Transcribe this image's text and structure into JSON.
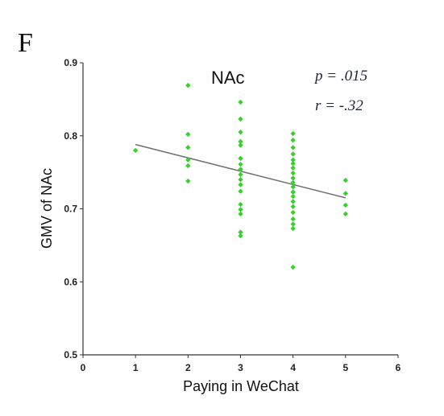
{
  "panel_label": "F",
  "chart_data": {
    "type": "scatter",
    "title": "NAc",
    "xlabel": "Paying in WeChat",
    "ylabel": "GMV of NAc",
    "xlim": [
      0,
      6
    ],
    "ylim": [
      0.5,
      0.9
    ],
    "x_ticks": [
      "0",
      "1",
      "2",
      "3",
      "4",
      "5",
      "6"
    ],
    "y_ticks": [
      "0.5",
      "0.6",
      "0.7",
      "0.8",
      "0.9"
    ],
    "grid": false,
    "annotations": {
      "p": "p = .015",
      "r": "r = -.32"
    },
    "colors": {
      "points": "#39d02e",
      "fit_line": "#707070",
      "axes": "#333333"
    },
    "points": [
      {
        "x": 1,
        "y": 0.78
      },
      {
        "x": 2,
        "y": 0.869
      },
      {
        "x": 2,
        "y": 0.802
      },
      {
        "x": 2,
        "y": 0.784
      },
      {
        "x": 2,
        "y": 0.767
      },
      {
        "x": 2,
        "y": 0.759
      },
      {
        "x": 2,
        "y": 0.738
      },
      {
        "x": 3,
        "y": 0.846
      },
      {
        "x": 3,
        "y": 0.823
      },
      {
        "x": 3,
        "y": 0.805
      },
      {
        "x": 3,
        "y": 0.792
      },
      {
        "x": 3,
        "y": 0.787
      },
      {
        "x": 3,
        "y": 0.769
      },
      {
        "x": 3,
        "y": 0.761
      },
      {
        "x": 3,
        "y": 0.754
      },
      {
        "x": 3,
        "y": 0.747
      },
      {
        "x": 3,
        "y": 0.74
      },
      {
        "x": 3,
        "y": 0.733
      },
      {
        "x": 3,
        "y": 0.724
      },
      {
        "x": 3,
        "y": 0.706
      },
      {
        "x": 3,
        "y": 0.699
      },
      {
        "x": 3,
        "y": 0.693
      },
      {
        "x": 3,
        "y": 0.668
      },
      {
        "x": 3,
        "y": 0.663
      },
      {
        "x": 4,
        "y": 0.803
      },
      {
        "x": 4,
        "y": 0.794
      },
      {
        "x": 4,
        "y": 0.784
      },
      {
        "x": 4,
        "y": 0.775
      },
      {
        "x": 4,
        "y": 0.767
      },
      {
        "x": 4,
        "y": 0.762
      },
      {
        "x": 4,
        "y": 0.756
      },
      {
        "x": 4,
        "y": 0.749
      },
      {
        "x": 4,
        "y": 0.742
      },
      {
        "x": 4,
        "y": 0.736
      },
      {
        "x": 4,
        "y": 0.73
      },
      {
        "x": 4,
        "y": 0.723
      },
      {
        "x": 4,
        "y": 0.717
      },
      {
        "x": 4,
        "y": 0.71
      },
      {
        "x": 4,
        "y": 0.703
      },
      {
        "x": 4,
        "y": 0.695
      },
      {
        "x": 4,
        "y": 0.686
      },
      {
        "x": 4,
        "y": 0.679
      },
      {
        "x": 4,
        "y": 0.673
      },
      {
        "x": 4,
        "y": 0.62
      },
      {
        "x": 5,
        "y": 0.739
      },
      {
        "x": 5,
        "y": 0.721
      },
      {
        "x": 5,
        "y": 0.705
      },
      {
        "x": 5,
        "y": 0.693
      }
    ],
    "fit_line": {
      "x": [
        1,
        5
      ],
      "y": [
        0.788,
        0.715
      ]
    }
  }
}
